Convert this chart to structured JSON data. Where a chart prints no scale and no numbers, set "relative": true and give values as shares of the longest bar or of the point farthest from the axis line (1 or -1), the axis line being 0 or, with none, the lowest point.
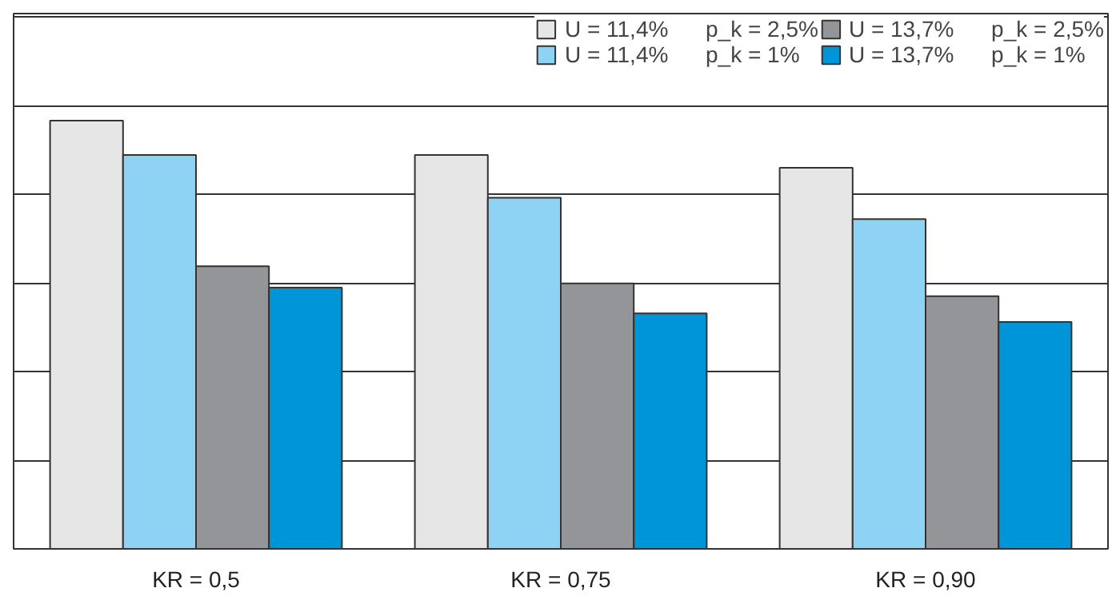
{
  "chart_data": {
    "type": "bar",
    "relative": true,
    "categories": [
      "KR = 0,5",
      "KR = 0,75",
      "KR = 0,90"
    ],
    "series": [
      {
        "name": "U = 11,4%      p_k = 2,5%",
        "color": "#e6e6e6",
        "values": [
          1,
          0.92,
          0.89
        ]
      },
      {
        "name": "U = 11,4%      p_k = 1%",
        "color": "#8fd3f4",
        "values": [
          0.92,
          0.82,
          0.77
        ]
      },
      {
        "name": "U = 13,7%      p_k = 2,5%",
        "color": "#939598",
        "values": [
          0.66,
          0.62,
          0.59
        ]
      },
      {
        "name": "U = 13,7%      p_k = 1%",
        "color": "#0095d9",
        "values": [
          0.61,
          0.55,
          0.53
        ]
      }
    ],
    "grid": "y",
    "legend": "top right"
  }
}
